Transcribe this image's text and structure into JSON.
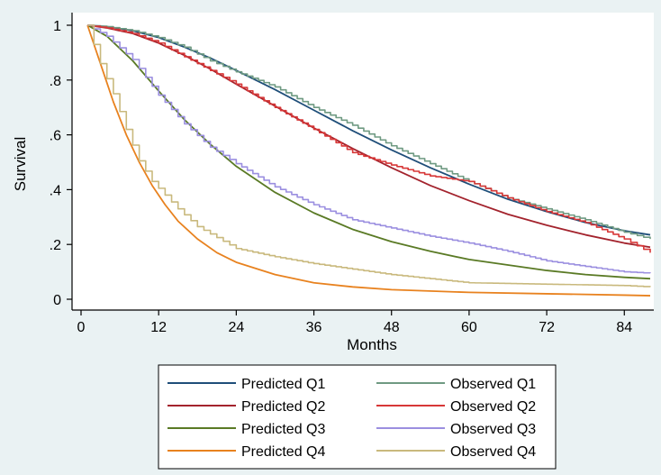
{
  "chart_data": {
    "type": "line",
    "xlabel": "Months",
    "ylabel": "Survival",
    "xlim": [
      0,
      88
    ],
    "ylim": [
      0,
      1
    ],
    "xticks": [
      0,
      12,
      24,
      36,
      48,
      60,
      72,
      84
    ],
    "yticks": [
      0,
      0.2,
      0.4,
      0.6,
      0.8,
      1
    ],
    "ytick_labels": [
      "0",
      ".2",
      ".4",
      ".6",
      ".8",
      "1"
    ],
    "legend_position": "bottom",
    "grid": false,
    "series": [
      {
        "name": "Predicted Q1",
        "kind": "predicted",
        "color": "#1f4e79",
        "x": [
          1,
          4,
          8,
          12,
          16,
          20,
          24,
          30,
          36,
          42,
          48,
          54,
          60,
          66,
          72,
          78,
          84,
          88
        ],
        "y": [
          1.0,
          0.995,
          0.98,
          0.955,
          0.92,
          0.88,
          0.835,
          0.765,
          0.69,
          0.615,
          0.545,
          0.48,
          0.42,
          0.365,
          0.32,
          0.28,
          0.25,
          0.235
        ]
      },
      {
        "name": "Predicted Q2",
        "kind": "predicted",
        "color": "#a3232d",
        "x": [
          1,
          4,
          8,
          12,
          16,
          20,
          24,
          30,
          36,
          42,
          48,
          54,
          60,
          66,
          72,
          78,
          84,
          88
        ],
        "y": [
          1.0,
          0.99,
          0.97,
          0.935,
          0.89,
          0.84,
          0.785,
          0.705,
          0.625,
          0.55,
          0.48,
          0.415,
          0.36,
          0.31,
          0.27,
          0.235,
          0.205,
          0.19
        ]
      },
      {
        "name": "Predicted Q3",
        "kind": "predicted",
        "color": "#5a7a25",
        "x": [
          1,
          4,
          8,
          12,
          16,
          20,
          24,
          30,
          36,
          42,
          48,
          54,
          60,
          66,
          72,
          78,
          84,
          88
        ],
        "y": [
          1.0,
          0.96,
          0.87,
          0.76,
          0.655,
          0.565,
          0.485,
          0.39,
          0.315,
          0.255,
          0.21,
          0.175,
          0.145,
          0.125,
          0.105,
          0.09,
          0.08,
          0.075
        ]
      },
      {
        "name": "Predicted Q4",
        "kind": "predicted",
        "color": "#e8821f",
        "x": [
          1,
          3,
          5,
          7,
          9,
          11,
          13,
          15,
          18,
          21,
          24,
          30,
          36,
          42,
          48,
          60,
          72,
          84,
          88
        ],
        "y": [
          1.0,
          0.86,
          0.72,
          0.6,
          0.5,
          0.415,
          0.345,
          0.285,
          0.22,
          0.17,
          0.135,
          0.09,
          0.06,
          0.045,
          0.035,
          0.025,
          0.02,
          0.015,
          0.013
        ]
      },
      {
        "name": "Observed Q1",
        "kind": "observed",
        "color": "#6f9a82",
        "x": [
          1,
          4,
          8,
          12,
          16,
          20,
          24,
          30,
          36,
          42,
          48,
          54,
          60,
          66,
          72,
          78,
          84,
          88
        ],
        "y": [
          1.0,
          0.995,
          0.98,
          0.955,
          0.92,
          0.87,
          0.83,
          0.775,
          0.7,
          0.635,
          0.56,
          0.495,
          0.43,
          0.37,
          0.33,
          0.29,
          0.245,
          0.22
        ]
      },
      {
        "name": "Observed Q2",
        "kind": "observed",
        "color": "#d73737",
        "x": [
          1,
          4,
          8,
          12,
          16,
          20,
          24,
          30,
          36,
          42,
          48,
          54,
          60,
          66,
          72,
          78,
          84,
          88
        ],
        "y": [
          1.0,
          0.99,
          0.97,
          0.935,
          0.885,
          0.835,
          0.785,
          0.7,
          0.62,
          0.535,
          0.49,
          0.45,
          0.43,
          0.37,
          0.32,
          0.28,
          0.22,
          0.17
        ]
      },
      {
        "name": "Observed Q3",
        "kind": "observed",
        "color": "#9b8fe0",
        "x": [
          1,
          4,
          8,
          12,
          16,
          20,
          24,
          30,
          36,
          42,
          48,
          54,
          60,
          66,
          72,
          78,
          84,
          88
        ],
        "y": [
          1.0,
          0.96,
          0.875,
          0.745,
          0.64,
          0.555,
          0.495,
          0.41,
          0.345,
          0.29,
          0.26,
          0.23,
          0.205,
          0.175,
          0.14,
          0.12,
          0.1,
          0.095
        ]
      },
      {
        "name": "Observed Q4",
        "kind": "observed",
        "color": "#c9b97d",
        "x": [
          1,
          3,
          5,
          7,
          9,
          11,
          13,
          15,
          18,
          21,
          24,
          30,
          36,
          42,
          48,
          54,
          60,
          72,
          84,
          88
        ],
        "y": [
          1.0,
          0.86,
          0.75,
          0.62,
          0.505,
          0.43,
          0.38,
          0.33,
          0.265,
          0.225,
          0.185,
          0.155,
          0.13,
          0.11,
          0.09,
          0.075,
          0.06,
          0.055,
          0.05,
          0.045
        ]
      }
    ]
  }
}
